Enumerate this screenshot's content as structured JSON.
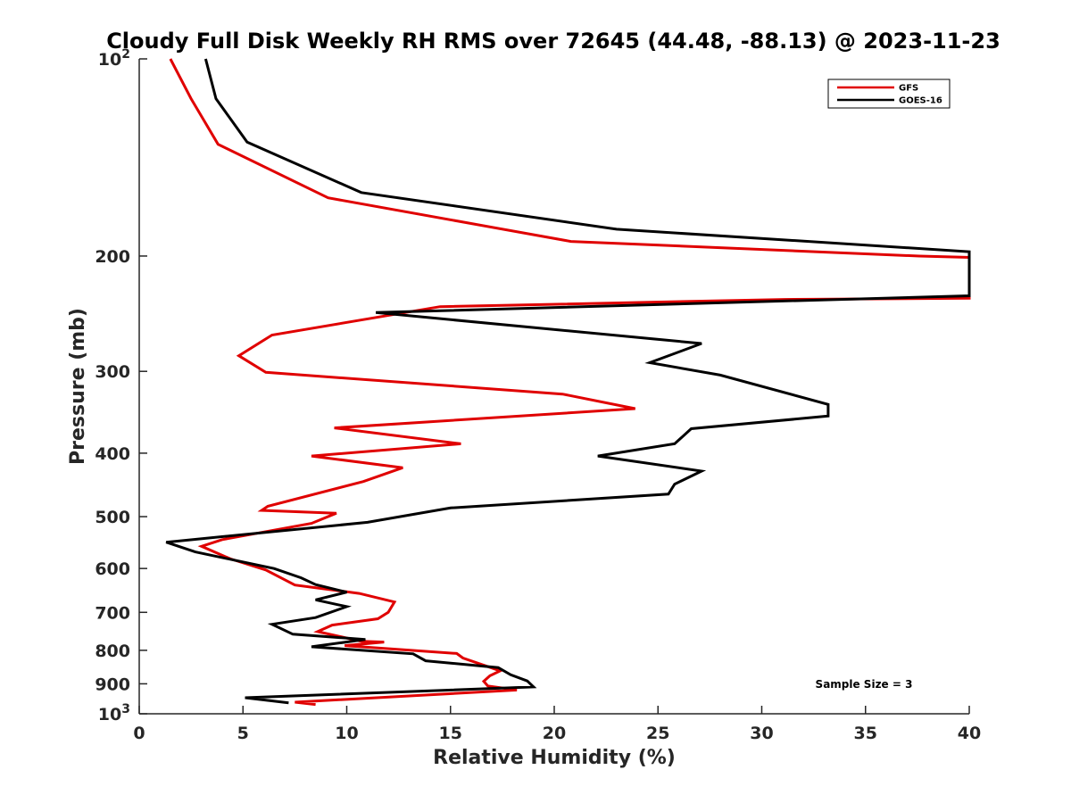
{
  "chart_data": {
    "type": "line",
    "title": "Cloudy Full Disk Weekly RH RMS over 72645 (44.48, -88.13) @ 2023-11-23",
    "xlabel": "Relative Humidity (%)",
    "ylabel": "Pressure (mb)",
    "xlim": [
      0,
      40
    ],
    "ylim": [
      100,
      1000
    ],
    "yscale": "log",
    "y_reversed": true,
    "x_ticks": [
      "0",
      "5",
      "10",
      "15",
      "20",
      "25",
      "30",
      "35",
      "40"
    ],
    "y_ticks": [
      {
        "value": 100,
        "label": "10",
        "sup": "2"
      },
      {
        "value": 200,
        "label": "200",
        "sup": ""
      },
      {
        "value": 300,
        "label": "300",
        "sup": ""
      },
      {
        "value": 400,
        "label": "400",
        "sup": ""
      },
      {
        "value": 500,
        "label": "500",
        "sup": ""
      },
      {
        "value": 600,
        "label": "600",
        "sup": ""
      },
      {
        "value": 700,
        "label": "700",
        "sup": ""
      },
      {
        "value": 800,
        "label": "800",
        "sup": ""
      },
      {
        "value": 900,
        "label": "900",
        "sup": ""
      },
      {
        "value": 1000,
        "label": "10",
        "sup": "3"
      }
    ],
    "legend_position": "top-right",
    "grid": false,
    "annotation": "Sample Size = 3",
    "series": [
      {
        "name": "GFS",
        "color": "#e00000",
        "points": [
          [
            1.5,
            100
          ],
          [
            2.5,
            115
          ],
          [
            3.8,
            135
          ],
          [
            9.1,
            163
          ],
          [
            20.8,
            190
          ],
          [
            37.6,
            200
          ],
          [
            40,
            201
          ],
          [
            40,
            232
          ],
          [
            31.1,
            233
          ],
          [
            14.5,
            239
          ],
          [
            6.4,
            264
          ],
          [
            4.8,
            284
          ],
          [
            6.1,
            301
          ],
          [
            20.4,
            325
          ],
          [
            23.9,
            342
          ],
          [
            9.4,
            366
          ],
          [
            15.5,
            387
          ],
          [
            8.3,
            404
          ],
          [
            12.7,
            421
          ],
          [
            10.8,
            442
          ],
          [
            6.2,
            482
          ],
          [
            5.9,
            489
          ],
          [
            9.5,
            494
          ],
          [
            8.3,
            512
          ],
          [
            4.0,
            542
          ],
          [
            3.0,
            555
          ],
          [
            4.4,
            580
          ],
          [
            6.1,
            603
          ],
          [
            7.5,
            636
          ],
          [
            10.6,
            655
          ],
          [
            12.3,
            675
          ],
          [
            12.0,
            700
          ],
          [
            11.5,
            716
          ],
          [
            9.3,
            732
          ],
          [
            8.6,
            749
          ],
          [
            10.7,
            775
          ],
          [
            11.8,
            777
          ],
          [
            9.9,
            787
          ],
          [
            15.3,
            809
          ],
          [
            15.6,
            822
          ],
          [
            17.4,
            860
          ],
          [
            16.9,
            875
          ],
          [
            16.6,
            892
          ],
          [
            16.8,
            907
          ],
          [
            18.2,
            920
          ],
          [
            7.5,
            960
          ],
          [
            8.5,
            968
          ]
        ]
      },
      {
        "name": "GOES-16",
        "color": "#000000",
        "points": [
          [
            3.2,
            100
          ],
          [
            3.7,
            115
          ],
          [
            5.2,
            134
          ],
          [
            10.7,
            160
          ],
          [
            23.0,
            182
          ],
          [
            40,
            197
          ],
          [
            40,
            230
          ],
          [
            11.4,
            244
          ],
          [
            27.1,
            272
          ],
          [
            24.6,
            291
          ],
          [
            28.0,
            304
          ],
          [
            33.2,
            337
          ],
          [
            33.2,
            351
          ],
          [
            26.6,
            367
          ],
          [
            25.8,
            387
          ],
          [
            22.1,
            404
          ],
          [
            27.1,
            426
          ],
          [
            25.8,
            446
          ],
          [
            25.5,
            462
          ],
          [
            15.0,
            485
          ],
          [
            11.0,
            510
          ],
          [
            1.3,
            547
          ],
          [
            2.7,
            566
          ],
          [
            6.5,
            600
          ],
          [
            7.8,
            620
          ],
          [
            8.5,
            635
          ],
          [
            10.0,
            652
          ],
          [
            8.5,
            670
          ],
          [
            10.0,
            686
          ],
          [
            8.5,
            713
          ],
          [
            6.4,
            730
          ],
          [
            7.4,
            756
          ],
          [
            10.9,
            770
          ],
          [
            8.3,
            790
          ],
          [
            13.2,
            810
          ],
          [
            13.8,
            830
          ],
          [
            17.3,
            850
          ],
          [
            17.9,
            872
          ],
          [
            18.7,
            891
          ],
          [
            19.0,
            910
          ],
          [
            5.1,
            945
          ],
          [
            7.2,
            962
          ]
        ]
      }
    ]
  }
}
